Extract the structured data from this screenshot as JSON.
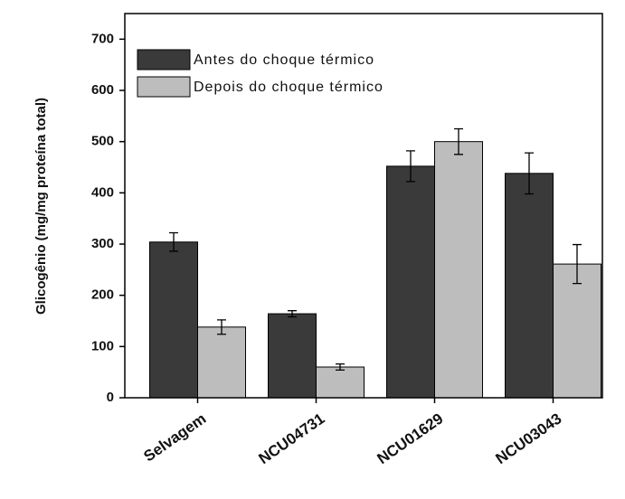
{
  "chart_data": {
    "type": "bar",
    "y_label": "Glicogênio (mg/mg proteína total)",
    "categories": [
      "Selvagem",
      "NCU04731",
      "NCU01629",
      "NCU03043"
    ],
    "series": [
      {
        "name": "Antes do choque térmico",
        "color": "#3a3a3a",
        "values": [
          304,
          164,
          452,
          438
        ],
        "errors": [
          18,
          6,
          30,
          40
        ]
      },
      {
        "name": "Depois do choque térmico",
        "color": "#bdbdbd",
        "values": [
          138,
          60,
          500,
          261
        ],
        "errors": [
          14,
          6,
          25,
          38
        ]
      }
    ],
    "ylim": [
      0,
      750
    ],
    "yticks": [
      0,
      100,
      200,
      300,
      400,
      500,
      600,
      700
    ],
    "legend": "upper left"
  }
}
